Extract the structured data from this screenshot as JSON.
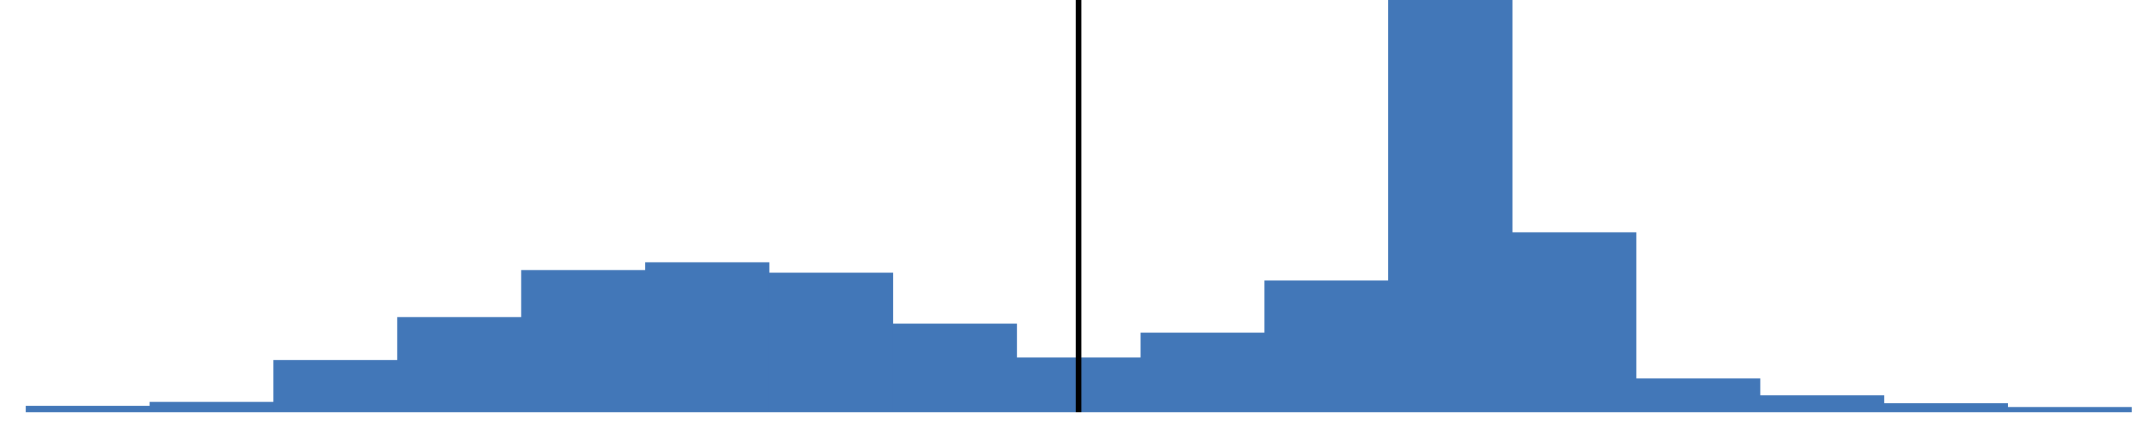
{
  "chart_data": {
    "type": "bar",
    "values": [
      2.5,
      4,
      20,
      36.5,
      54.5,
      57.5,
      53.5,
      34,
      21,
      30.5,
      50.5,
      158,
      69,
      13,
      6.5,
      3.5,
      2
    ],
    "ylim": [
      0,
      158
    ],
    "grid": false,
    "legend": "none",
    "colors": {
      "bar": "#4277b8",
      "reference_line": "#000000"
    },
    "reference_line_x": 8.5
  }
}
